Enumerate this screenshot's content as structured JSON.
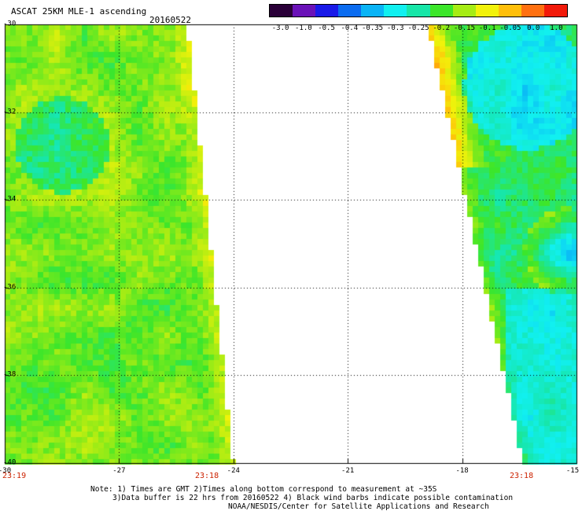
{
  "header": {
    "title": "ASCAT 25KM MLE-1 ascending",
    "date": "20160522"
  },
  "colorbar": {
    "ticks": [
      "-3.0",
      "-1.0",
      "-0.5",
      "-0.4",
      "-0.35",
      "-0.3",
      "-0.25",
      "-0.2",
      "-0.15",
      "-0.1",
      "-0.05",
      "0.0",
      "1.0"
    ],
    "colors": [
      "#2a0038",
      "#6a12b8",
      "#1a1ae8",
      "#0b6cf0",
      "#0ab4f6",
      "#11f0f0",
      "#17e6a8",
      "#3ce62a",
      "#a6ec14",
      "#f2f20a",
      "#ffbf0a",
      "#ff7010",
      "#f21a0a"
    ]
  },
  "map": {
    "lon_ticks": [
      "-30",
      "-27",
      "-24",
      "-21",
      "-18",
      "-15"
    ],
    "lat_ticks": [
      "-30",
      "-32",
      "-34",
      "-36",
      "-38",
      "-40"
    ],
    "time_labels": [
      "23:19",
      "23:18",
      "23:18"
    ],
    "lon_range": [
      -30,
      -15
    ],
    "lat_range": [
      -40,
      -30
    ],
    "swath_left": {
      "edge_lon_top": -25.2,
      "edge_lon_bottom": -24.0,
      "mean_value": -0.17
    },
    "swath_right": {
      "edge_lon_top": -18.9,
      "edge_lon_bottom": -16.4,
      "mean_value": -0.22
    }
  },
  "notes": {
    "line1": "Note: 1) Times are GMT 2)Times along bottom correspond to measurement at ~35S",
    "line2": "3)Data buffer is 22 hrs from 20160522 4) Black wind barbs indicate possible contamination",
    "line3": "NOAA/NESDIS/Center for Satellite Applications and Research"
  }
}
